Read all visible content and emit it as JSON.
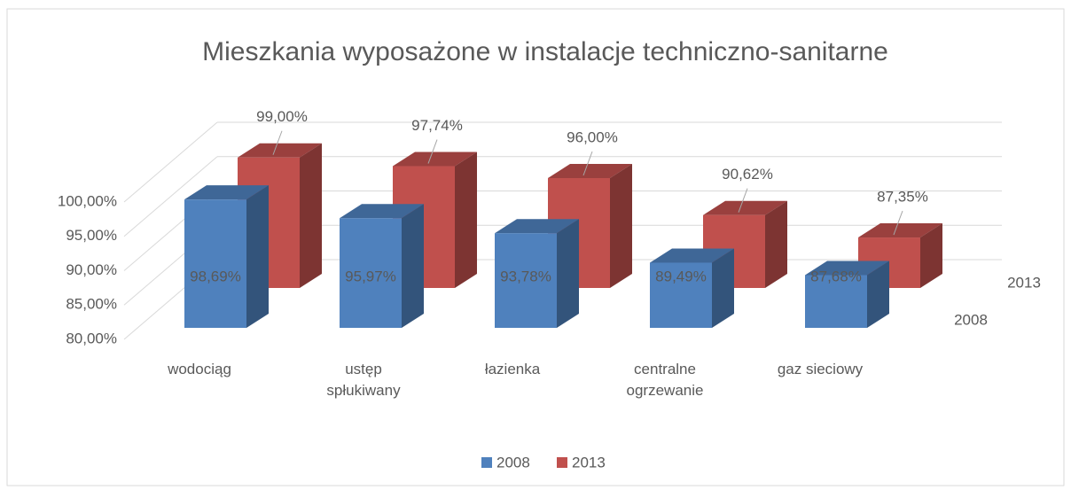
{
  "chart_data": {
    "type": "bar3d",
    "title": "Mieszkania wyposażone w instalacje techniczno-sanitarne",
    "categories": [
      "wodociąg",
      "ustęp spłukiwany",
      "łazienka",
      "centralne ogrzewanie",
      "gaz sieciowy"
    ],
    "series": [
      {
        "name": "2008",
        "color": "#4f81bd",
        "values": [
          98.69,
          95.97,
          93.78,
          89.49,
          87.68
        ],
        "value_labels": [
          "98,69%",
          "95,97%",
          "93,78%",
          "89,49%",
          "87,68%"
        ]
      },
      {
        "name": "2013",
        "color": "#c0504d",
        "values": [
          99.0,
          97.74,
          96.0,
          90.62,
          87.35
        ],
        "value_labels": [
          "99,00%",
          "97,74%",
          "96,00%",
          "90,62%",
          "87,35%"
        ]
      }
    ],
    "ylim": [
      80,
      100
    ],
    "yticks": [
      {
        "value": 80,
        "label": "80,00%"
      },
      {
        "value": 85,
        "label": "85,00%"
      },
      {
        "value": 90,
        "label": "90,00%"
      },
      {
        "value": 95,
        "label": "95,00%"
      },
      {
        "value": 100,
        "label": "100,00%"
      }
    ],
    "grid": true,
    "legend": "bottom"
  }
}
